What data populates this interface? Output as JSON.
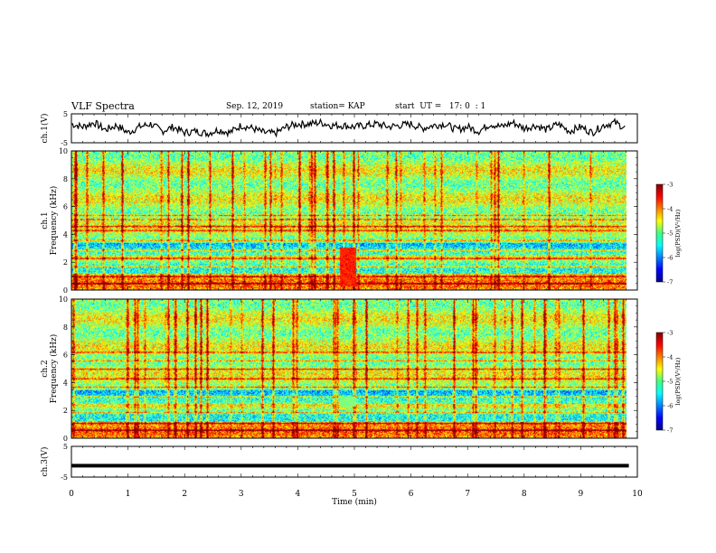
{
  "header": {
    "title": "VLF Spectra",
    "date": "Sep. 12, 2019",
    "station": "station= KAP",
    "start_time": "start  UT =   17: 0  : 1"
  },
  "chart_data": [
    {
      "type": "line",
      "ylabel": "ch.1(V)",
      "ylim": [
        -5,
        5
      ],
      "yticks": [
        "5",
        "-5"
      ],
      "x": [
        0,
        0.2,
        0.4,
        0.6,
        0.8,
        1.0,
        1.2,
        1.4,
        1.6,
        1.8,
        2.0,
        2.2,
        2.4,
        2.6,
        2.8,
        3.0,
        3.2,
        3.4,
        3.6,
        3.8,
        4.0,
        4.2,
        4.4,
        4.6,
        4.8,
        5.0,
        5.2,
        5.4,
        5.6,
        5.8,
        6.0,
        6.2,
        6.4,
        6.6,
        6.8,
        7.0,
        7.2,
        7.4,
        7.6,
        7.8,
        8.0,
        8.2,
        8.4,
        8.6,
        8.8,
        9.0,
        9.2,
        9.4,
        9.6,
        9.8
      ],
      "y": [
        1.5,
        0.5,
        2.0,
        -0.5,
        1.0,
        -1.5,
        0.5,
        1.5,
        -1.0,
        0.5,
        -1.5,
        -1.0,
        -1.8,
        -0.5,
        -1.5,
        1.0,
        0.0,
        -1.5,
        -1.8,
        0.5,
        1.5,
        1.5,
        2.0,
        1.0,
        1.0,
        0.5,
        1.0,
        1.5,
        0.5,
        1.0,
        1.5,
        0.0,
        1.0,
        1.5,
        -0.5,
        0.5,
        -1.0,
        1.5,
        0.5,
        2.0,
        0.0,
        1.0,
        -0.5,
        1.5,
        -1.0,
        0.5,
        -1.5,
        1.0,
        2.0,
        0.0
      ]
    },
    {
      "type": "heatmap",
      "ylabel": "ch.1\nFrequency (kHz)",
      "ylim": [
        0,
        10
      ],
      "yticks": [
        "0",
        "2",
        "4",
        "6",
        "8",
        "10"
      ],
      "colorbar": {
        "label": "log(PSD)(V²/Hz)",
        "range": [
          -7,
          -3
        ],
        "ticks": [
          "-3",
          "-4",
          "-5",
          "-6",
          "-7"
        ]
      },
      "red_bands_khz": [
        0.5,
        1.0,
        1.7,
        2.3,
        2.9,
        3.6,
        4.3,
        4.6,
        5.1,
        5.4
      ],
      "blue_band_khz": [
        2.5,
        3.4
      ],
      "burst": {
        "t_min": [
          4.75,
          5.05
        ],
        "f_khz": [
          0.3,
          3.1
        ]
      }
    },
    {
      "type": "heatmap",
      "ylabel": "ch.2\nFrequency (kHz)",
      "ylim": [
        0,
        10
      ],
      "yticks": [
        "0",
        "2",
        "4",
        "6",
        "8",
        "10"
      ],
      "colorbar": {
        "label": "log(PSD)(V²/Hz)",
        "range": [
          -7,
          -3
        ],
        "ticks": [
          "-3",
          "-4",
          "-5",
          "-6",
          "-7"
        ]
      },
      "red_bands_khz": [
        0.6,
        1.1,
        1.9,
        3.0,
        3.7,
        4.3,
        5.0,
        5.6,
        6.2
      ],
      "blue_band_khz": [
        2.5,
        3.5
      ],
      "burst": {
        "t_min": [
          4.75,
          5.05
        ],
        "f_khz": [
          2.3,
          3.0
        ]
      }
    },
    {
      "type": "line",
      "ylabel": "ch.3(V)",
      "ylim": [
        -5,
        5
      ],
      "yticks": [
        "5",
        "-5"
      ],
      "x": [
        0,
        9.85
      ],
      "y": [
        -1.3,
        -1.3
      ]
    }
  ],
  "xaxis": {
    "label": "Time (min)",
    "ticks": [
      "0",
      "1",
      "2",
      "3",
      "4",
      "5",
      "6",
      "7",
      "8",
      "9",
      "10"
    ],
    "range": [
      0,
      10
    ],
    "data_end": 9.85
  }
}
